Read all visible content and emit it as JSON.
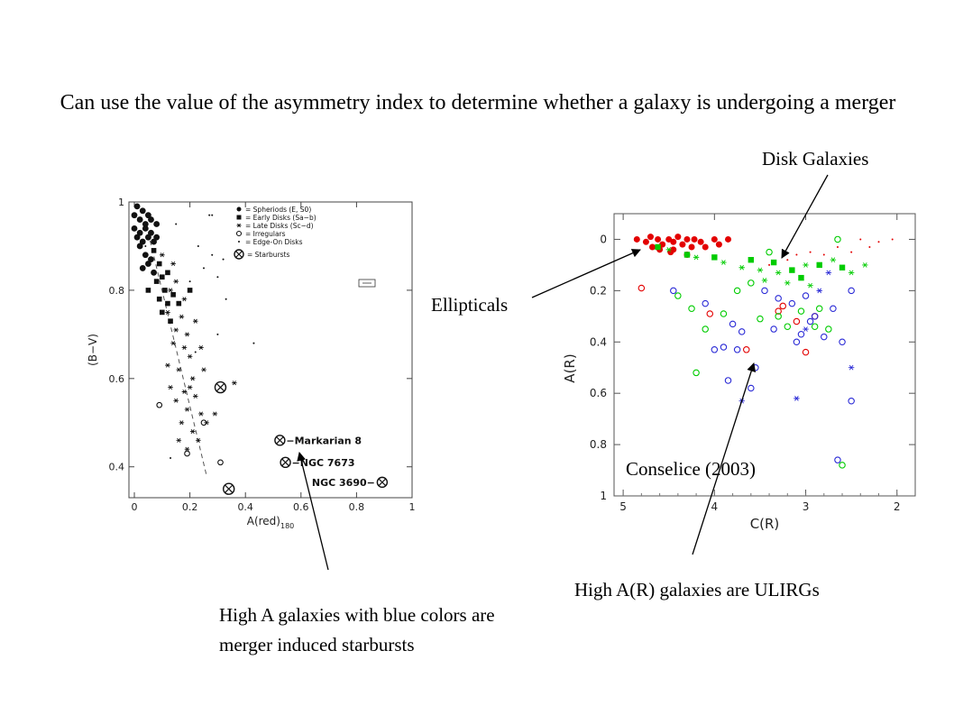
{
  "slide": {
    "title": "Can use the value of the asymmetry index to determine whether a galaxy is undergoing a merger",
    "annotations": {
      "merger": "High A galaxies with blue colors are merger induced starbursts",
      "ulirgs": "High A(R) galaxies are ULIRGs",
      "disk": "Disk Galaxies",
      "ellipticals": "Ellipticals",
      "citation": "Conselice (2003)"
    }
  },
  "chart_data": [
    {
      "type": "scatter",
      "title": "",
      "xlabel": "A(red)180",
      "ylabel": "(B−V)",
      "xlim": [
        0,
        1
      ],
      "ylim": [
        0.33,
        1.0
      ],
      "xticks": [
        "0",
        "0.2",
        "0.4",
        "0.6",
        "0.8",
        "1"
      ],
      "yticks": [
        "0.4",
        "0.6",
        "0.8",
        "1"
      ],
      "legend": {
        "placement": "top-right",
        "entries": [
          "= Spheriods (E, S0)",
          "= Early Disks (Sa−b)",
          "= Late Disks (Sc−d)",
          "= Irregulars",
          "= Edge-On Disks",
          "= Starbursts"
        ]
      },
      "trend_line": [
        [
          0.05,
          0.93
        ],
        [
          0.26,
          0.38
        ]
      ],
      "labeled_points": [
        {
          "label": "−Markarian 8",
          "x": 0.55,
          "y": 0.46
        },
        {
          "label": "−NGC 7673",
          "x": 0.57,
          "y": 0.41
        },
        {
          "label": "NGC 3690−",
          "x": 0.86,
          "y": 0.365
        }
      ],
      "series": [
        {
          "name": "= Spheriods (E, S0)",
          "marker": "filled-circle",
          "points": [
            [
              0.01,
              0.99
            ],
            [
              0.03,
              0.98
            ],
            [
              0.05,
              0.97
            ],
            [
              0.02,
              0.96
            ],
            [
              0.04,
              0.95
            ],
            [
              0.06,
              0.96
            ],
            [
              0.08,
              0.95
            ],
            [
              0.0,
              0.94
            ],
            [
              0.02,
              0.93
            ],
            [
              0.04,
              0.94
            ],
            [
              0.06,
              0.93
            ],
            [
              0.01,
              0.92
            ],
            [
              0.03,
              0.91
            ],
            [
              0.05,
              0.92
            ],
            [
              0.07,
              0.91
            ],
            [
              0.02,
              0.9
            ],
            [
              0.04,
              0.88
            ],
            [
              0.06,
              0.87
            ],
            [
              0.03,
              0.85
            ],
            [
              0.05,
              0.86
            ],
            [
              0.07,
              0.84
            ],
            [
              0.08,
              0.92
            ],
            [
              0.0,
              0.97
            ]
          ]
        },
        {
          "name": "= Early Disks (Sa−b)",
          "marker": "filled-square",
          "points": [
            [
              0.07,
              0.89
            ],
            [
              0.09,
              0.86
            ],
            [
              0.1,
              0.83
            ],
            [
              0.12,
              0.84
            ],
            [
              0.08,
              0.82
            ],
            [
              0.11,
              0.8
            ],
            [
              0.14,
              0.79
            ],
            [
              0.05,
              0.8
            ],
            [
              0.09,
              0.78
            ],
            [
              0.12,
              0.77
            ],
            [
              0.1,
              0.75
            ],
            [
              0.16,
              0.77
            ],
            [
              0.2,
              0.8
            ],
            [
              0.13,
              0.73
            ]
          ]
        },
        {
          "name": "= Late Disks (Sc−d)",
          "marker": "star",
          "points": [
            [
              0.1,
              0.88
            ],
            [
              0.14,
              0.86
            ],
            [
              0.15,
              0.82
            ],
            [
              0.13,
              0.8
            ],
            [
              0.18,
              0.78
            ],
            [
              0.12,
              0.75
            ],
            [
              0.17,
              0.74
            ],
            [
              0.15,
              0.71
            ],
            [
              0.19,
              0.7
            ],
            [
              0.22,
              0.73
            ],
            [
              0.14,
              0.68
            ],
            [
              0.18,
              0.67
            ],
            [
              0.2,
              0.65
            ],
            [
              0.24,
              0.67
            ],
            [
              0.12,
              0.63
            ],
            [
              0.16,
              0.62
            ],
            [
              0.21,
              0.6
            ],
            [
              0.25,
              0.62
            ],
            [
              0.13,
              0.58
            ],
            [
              0.18,
              0.57
            ],
            [
              0.22,
              0.56
            ],
            [
              0.15,
              0.55
            ],
            [
              0.19,
              0.53
            ],
            [
              0.24,
              0.52
            ],
            [
              0.17,
              0.5
            ],
            [
              0.21,
              0.48
            ],
            [
              0.23,
              0.46
            ],
            [
              0.19,
              0.44
            ],
            [
              0.16,
              0.46
            ],
            [
              0.29,
              0.52
            ],
            [
              0.36,
              0.59
            ],
            [
              0.2,
              0.58
            ],
            [
              0.26,
              0.5
            ]
          ]
        },
        {
          "name": "= Irregulars",
          "marker": "open-circle",
          "points": [
            [
              0.09,
              0.54
            ],
            [
              0.19,
              0.43
            ],
            [
              0.31,
              0.41
            ],
            [
              0.25,
              0.5
            ]
          ]
        },
        {
          "name": "= Edge-On Disks",
          "marker": "dot",
          "points": [
            [
              0.27,
              0.97
            ],
            [
              0.28,
              0.97
            ],
            [
              0.23,
              0.9
            ],
            [
              0.28,
              0.88
            ],
            [
              0.32,
              0.87
            ],
            [
              0.25,
              0.85
            ],
            [
              0.3,
              0.83
            ],
            [
              0.2,
              0.82
            ],
            [
              0.33,
              0.78
            ],
            [
              0.3,
              0.7
            ],
            [
              0.43,
              0.68
            ],
            [
              0.22,
              0.66
            ],
            [
              0.13,
              0.42
            ],
            [
              0.04,
              0.9
            ],
            [
              0.15,
              0.95
            ]
          ]
        },
        {
          "name": "= Starbursts",
          "marker": "circle-cross",
          "points": [
            [
              0.31,
              0.58
            ],
            [
              0.34,
              0.35
            ]
          ]
        }
      ]
    },
    {
      "type": "scatter",
      "title": "",
      "xlabel": "C(R)",
      "ylabel": "A(R)",
      "xlim": [
        5.1,
        1.8
      ],
      "ylim": [
        1.0,
        -0.1
      ],
      "xticks": [
        "5",
        "4",
        "3",
        "2"
      ],
      "yticks": [
        "0",
        "0.2",
        "0.4",
        "0.6",
        "0.8",
        "1"
      ],
      "series": [
        {
          "name": "",
          "color": "#e30000",
          "marker": "filled-circle",
          "points": [
            [
              4.85,
              0.0
            ],
            [
              4.75,
              0.01
            ],
            [
              4.7,
              -0.01
            ],
            [
              4.62,
              0.0
            ],
            [
              4.57,
              0.02
            ],
            [
              4.5,
              0.0
            ],
            [
              4.45,
              0.01
            ],
            [
              4.4,
              -0.01
            ],
            [
              4.35,
              0.02
            ],
            [
              4.3,
              0.0
            ],
            [
              4.25,
              0.03
            ],
            [
              4.22,
              0.0
            ],
            [
              4.15,
              0.01
            ],
            [
              4.1,
              0.03
            ],
            [
              4.0,
              0.0
            ],
            [
              3.95,
              0.02
            ],
            [
              3.85,
              0.0
            ],
            [
              4.6,
              0.04
            ],
            [
              4.48,
              0.05
            ],
            [
              4.3,
              0.06
            ],
            [
              4.68,
              0.03
            ],
            [
              4.45,
              0.04
            ]
          ]
        },
        {
          "name": "",
          "color": "#e30000",
          "marker": "open-circle",
          "points": [
            [
              4.8,
              0.19
            ],
            [
              4.05,
              0.29
            ],
            [
              3.3,
              0.28
            ],
            [
              3.65,
              0.43
            ],
            [
              3.0,
              0.44
            ],
            [
              3.1,
              0.32
            ],
            [
              3.25,
              0.26
            ],
            [
              2.9,
              0.3
            ]
          ]
        },
        {
          "name": "",
          "color": "#e30000",
          "marker": "dot",
          "points": [
            [
              3.2,
              0.08
            ],
            [
              3.1,
              0.06
            ],
            [
              2.95,
              0.05
            ],
            [
              2.8,
              0.06
            ],
            [
              2.65,
              0.03
            ],
            [
              2.5,
              0.05
            ],
            [
              2.4,
              0.0
            ],
            [
              2.3,
              0.03
            ],
            [
              2.2,
              0.01
            ],
            [
              2.05,
              0.0
            ],
            [
              3.4,
              0.1
            ]
          ]
        },
        {
          "name": "",
          "color": "#00cc00",
          "marker": "filled-square",
          "points": [
            [
              4.62,
              0.03
            ],
            [
              4.3,
              0.06
            ],
            [
              4.0,
              0.07
            ],
            [
              3.6,
              0.08
            ],
            [
              3.35,
              0.09
            ],
            [
              3.15,
              0.12
            ],
            [
              2.85,
              0.1
            ],
            [
              2.6,
              0.11
            ],
            [
              3.05,
              0.15
            ]
          ]
        },
        {
          "name": "",
          "color": "#00cc00",
          "marker": "star",
          "points": [
            [
              4.5,
              0.04
            ],
            [
              4.2,
              0.07
            ],
            [
              3.9,
              0.09
            ],
            [
              3.7,
              0.11
            ],
            [
              3.5,
              0.12
            ],
            [
              3.3,
              0.13
            ],
            [
              3.0,
              0.1
            ],
            [
              2.7,
              0.08
            ],
            [
              2.5,
              0.13
            ],
            [
              2.35,
              0.1
            ],
            [
              3.2,
              0.17
            ],
            [
              2.95,
              0.18
            ],
            [
              3.45,
              0.16
            ]
          ]
        },
        {
          "name": "",
          "color": "#00cc00",
          "marker": "open-circle",
          "points": [
            [
              4.4,
              0.22
            ],
            [
              4.25,
              0.27
            ],
            [
              3.9,
              0.29
            ],
            [
              3.75,
              0.2
            ],
            [
              3.5,
              0.31
            ],
            [
              3.3,
              0.3
            ],
            [
              3.2,
              0.34
            ],
            [
              3.05,
              0.28
            ],
            [
              2.85,
              0.27
            ],
            [
              2.75,
              0.35
            ],
            [
              2.9,
              0.34
            ],
            [
              4.1,
              0.35
            ],
            [
              4.2,
              0.52
            ],
            [
              3.6,
              0.17
            ],
            [
              2.6,
              0.88
            ],
            [
              2.65,
              0.0
            ],
            [
              3.4,
              0.05
            ]
          ]
        },
        {
          "name": "",
          "color": "#2a2ad6",
          "marker": "open-circle",
          "points": [
            [
              4.45,
              0.2
            ],
            [
              4.1,
              0.25
            ],
            [
              4.0,
              0.43
            ],
            [
              3.8,
              0.33
            ],
            [
              3.7,
              0.36
            ],
            [
              3.55,
              0.5
            ],
            [
              3.45,
              0.2
            ],
            [
              3.3,
              0.23
            ],
            [
              3.15,
              0.25
            ],
            [
              3.0,
              0.22
            ],
            [
              2.9,
              0.3
            ],
            [
              2.8,
              0.38
            ],
            [
              2.7,
              0.27
            ],
            [
              2.6,
              0.4
            ],
            [
              2.5,
              0.2
            ],
            [
              2.5,
              0.63
            ],
            [
              3.75,
              0.43
            ],
            [
              3.6,
              0.58
            ],
            [
              3.85,
              0.55
            ],
            [
              3.9,
              0.42
            ],
            [
              3.35,
              0.35
            ],
            [
              3.1,
              0.4
            ],
            [
              3.05,
              0.37
            ],
            [
              2.95,
              0.32
            ],
            [
              2.65,
              0.86
            ]
          ]
        },
        {
          "name": "",
          "color": "#2a2ad6",
          "marker": "star",
          "points": [
            [
              2.85,
              0.2
            ],
            [
              3.0,
              0.35
            ],
            [
              2.75,
              0.13
            ],
            [
              3.1,
              0.62
            ],
            [
              2.5,
              0.5
            ],
            [
              3.7,
              0.63
            ]
          ]
        }
      ]
    }
  ]
}
